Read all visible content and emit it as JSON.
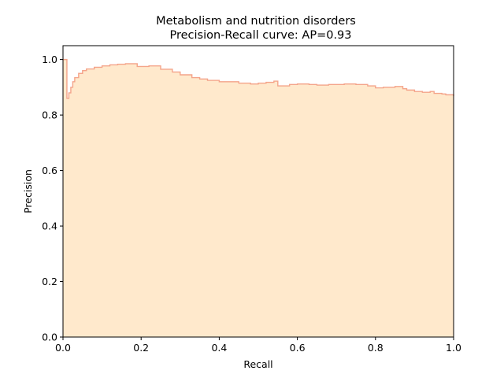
{
  "chart_data": {
    "type": "area",
    "title": "Metabolism and nutrition disorders",
    "subtitle": "Precision-Recall curve: AP=0.93",
    "xlabel": "Recall",
    "ylabel": "Precision",
    "xlim": [
      0.0,
      1.0
    ],
    "ylim": [
      0.0,
      1.05
    ],
    "xticks": [
      "0.0",
      "0.2",
      "0.4",
      "0.6",
      "0.8",
      "1.0"
    ],
    "yticks": [
      "0.0",
      "0.2",
      "0.4",
      "0.6",
      "0.8",
      "1.0"
    ],
    "grid": false,
    "fill_color": "#ffe9cc",
    "line_color": "#f4a48a",
    "series": [
      {
        "recall": [
          0.0,
          0.01,
          0.01,
          0.012,
          0.015,
          0.02,
          0.025,
          0.03,
          0.04,
          0.05,
          0.06,
          0.08,
          0.1,
          0.12,
          0.14,
          0.16,
          0.19,
          0.19,
          0.2,
          0.22,
          0.24,
          0.25,
          0.27,
          0.28,
          0.3,
          0.32,
          0.33,
          0.35,
          0.37,
          0.4,
          0.42,
          0.45,
          0.48,
          0.5,
          0.52,
          0.54,
          0.55,
          0.58,
          0.6,
          0.63,
          0.65,
          0.68,
          0.7,
          0.72,
          0.75,
          0.78,
          0.8,
          0.82,
          0.85,
          0.87,
          0.88,
          0.9,
          0.92,
          0.94,
          0.95,
          0.97,
          0.98,
          1.0
        ],
        "precision": [
          1.0,
          1.0,
          0.86,
          0.86,
          0.88,
          0.9,
          0.92,
          0.935,
          0.95,
          0.96,
          0.966,
          0.972,
          0.977,
          0.981,
          0.983,
          0.985,
          0.987,
          0.975,
          0.975,
          0.977,
          0.977,
          0.965,
          0.965,
          0.955,
          0.945,
          0.945,
          0.935,
          0.93,
          0.925,
          0.92,
          0.92,
          0.915,
          0.912,
          0.915,
          0.918,
          0.922,
          0.905,
          0.91,
          0.912,
          0.91,
          0.908,
          0.91,
          0.91,
          0.912,
          0.91,
          0.905,
          0.898,
          0.9,
          0.903,
          0.895,
          0.89,
          0.885,
          0.882,
          0.885,
          0.878,
          0.876,
          0.873,
          0.868
        ]
      }
    ]
  }
}
